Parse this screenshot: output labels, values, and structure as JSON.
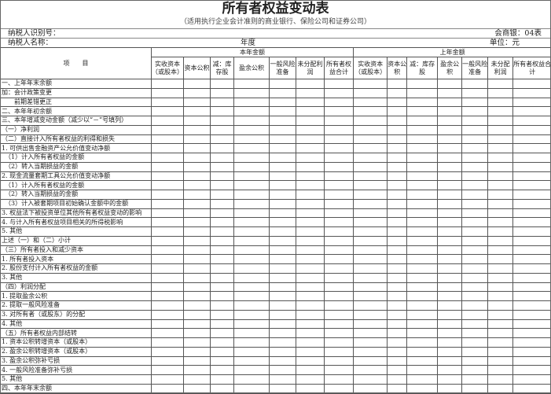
{
  "title": "所有者权益变动表",
  "subtitle": "（适用执行企业会计准则的商业银行、保险公司和证券公司）",
  "taxpayer_id_label": "纳税人识别号：",
  "form_code": "会商银：04表",
  "taxpayer_name_label": "纳税人名称：",
  "year_label": "年度",
  "unit_label": "单位：元",
  "table": {
    "item_header": "项　　目",
    "current_year": "本年金额",
    "prior_year": "上年金额",
    "columns_current": [
      "实收资本（或股本）",
      "资本公积",
      "减：库存股",
      "盈余公积",
      "一般风险准备",
      "未分配利润",
      "所有者权益合计"
    ],
    "columns_prior": [
      "实收资本（或股本）",
      "资本公积",
      "减：库存股",
      "盈余公积",
      "一般风险准备",
      "未分配利润",
      "所有者权益合计"
    ],
    "rows": [
      "一、上年年末余额",
      "加：会计政策变更",
      "　　前期差错更正",
      "二、本年年初余额",
      "三、本年增减变动金额（减少以“－”号填列）",
      "（一）净利润",
      "（二）直接计入所有者权益的利得和损失",
      "1. 可供出售金融资产公允价值变动净额",
      "　（1）计入所有者权益的金额",
      "　（2）转入当期损益的金额",
      "2. 现金流量套期工具公允价值变动净额",
      "　（1）计入所有者权益的金额",
      "　（2）转入当期损益的金额",
      "　（3）计入被套期项目初始确认金额中的金额",
      "3. 权益法下被投资单位其他所有者权益变动的影响",
      "4. 与计入所有者权益项目相关的所得税影响",
      "5. 其他",
      "上述（一）和（二）小计",
      "（三）所有者投入和减少资本",
      "1. 所有者投入资本",
      "2. 股份支付计入所有者权益的金额",
      "3. 其他",
      "（四）利润分配",
      "1. 提取盈余公积",
      "2. 提取一般风险准备",
      "3. 对所有者（或股东）的分配",
      "4. 其他",
      "（五）所有者权益内部结转",
      "1. 资本公积转增资本（或股本）",
      "2. 盈余公积转增资本（或股本）",
      "3. 盈余公积弥补亏损",
      "4. 一般风险准备弥补亏损",
      "5. 其他",
      "四、本年年末余额"
    ]
  }
}
